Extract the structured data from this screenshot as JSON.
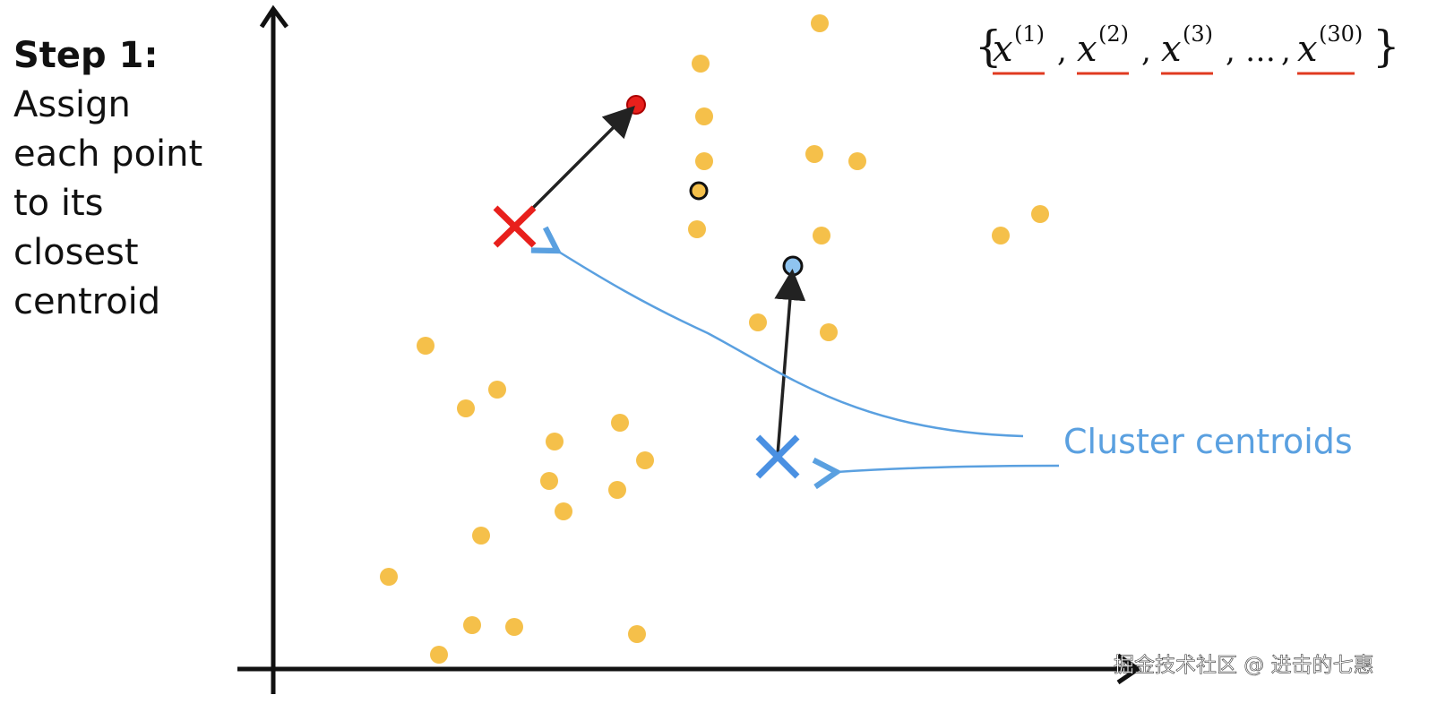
{
  "step": {
    "title": "Step 1:",
    "lines": [
      "Assign",
      "each point",
      "to its",
      "closest",
      "centroid"
    ]
  },
  "annotation": "Cluster centroids",
  "notation": {
    "open": "{",
    "variable": "x",
    "separator": ",",
    "ellipsis": "…",
    "close": "}",
    "superscripts": [
      "(1)",
      "(2)",
      "(3)",
      "(30)"
    ]
  },
  "watermark": "掘金技术社区 @ 进击的七惠"
}
